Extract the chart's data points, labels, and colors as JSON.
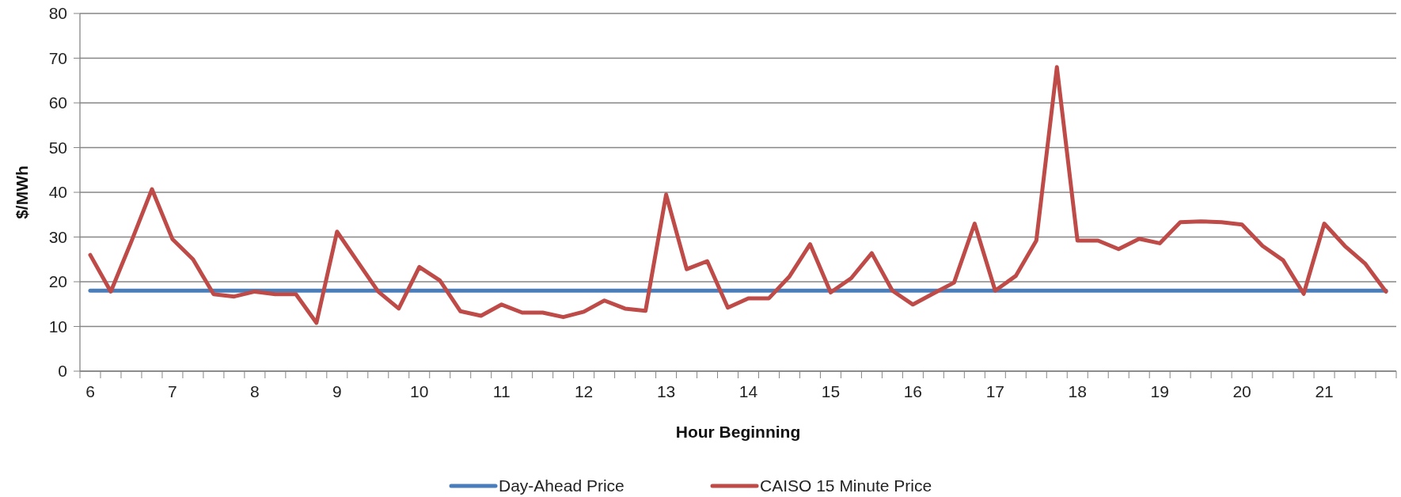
{
  "chart_data": {
    "type": "line",
    "xlabel": "Hour Beginning",
    "ylabel": "$/MWh",
    "categories": [
      "6",
      null,
      null,
      null,
      "7",
      null,
      null,
      null,
      "8",
      null,
      null,
      null,
      "9",
      null,
      null,
      null,
      "10",
      null,
      null,
      null,
      "11",
      null,
      null,
      null,
      "12",
      null,
      null,
      null,
      "13",
      null,
      null,
      null,
      "14",
      null,
      null,
      null,
      "15",
      null,
      null,
      null,
      "16",
      null,
      null,
      null,
      "17",
      null,
      null,
      null,
      "18",
      null,
      null,
      null,
      "19",
      null,
      null,
      null,
      "20",
      null,
      null,
      null,
      "21",
      null,
      null,
      null
    ],
    "series": [
      {
        "name": "Day-Ahead Price",
        "color": "#4a7ebb",
        "values": [
          18,
          18,
          18,
          18,
          18,
          18,
          18,
          18,
          18,
          18,
          18,
          18,
          18,
          18,
          18,
          18,
          18,
          18,
          18,
          18,
          18,
          18,
          18,
          18,
          18,
          18,
          18,
          18,
          18,
          18,
          18,
          18,
          18,
          18,
          18,
          18,
          18,
          18,
          18,
          18,
          18,
          18,
          18,
          18,
          18,
          18,
          18,
          18,
          18,
          18,
          18,
          18,
          18,
          18,
          18,
          18,
          18,
          18,
          18,
          18,
          18,
          18,
          18,
          18
        ]
      },
      {
        "name": "CAISO 15 Minute Price",
        "color": "#be4b48",
        "values": [
          26,
          17.8,
          29,
          40.7,
          29.5,
          25,
          17.2,
          16.7,
          17.8,
          17.2,
          17.2,
          10.8,
          31.2,
          24.5,
          17.8,
          14,
          23.3,
          20.3,
          13.4,
          12.4,
          14.9,
          13.1,
          13.1,
          12.1,
          13.3,
          15.8,
          14,
          13.5,
          39.5,
          22.8,
          24.6,
          14.2,
          16.3,
          16.3,
          21.2,
          28.4,
          17.6,
          20.8,
          26.4,
          18,
          14.9,
          17.4,
          19.8,
          33,
          18,
          21.3,
          29.2,
          68,
          29.2,
          29.2,
          27.3,
          29.6,
          28.6,
          33.3,
          33.5,
          33.3,
          32.8,
          28,
          24.8,
          17.3,
          33,
          28,
          24,
          17.8
        ]
      }
    ],
    "ylim": [
      0,
      80
    ],
    "yticks": [
      0,
      10,
      20,
      30,
      40,
      50,
      60,
      70,
      80
    ],
    "grid": "y",
    "legend": "bottom",
    "marker": "none",
    "line_style": "solid"
  }
}
